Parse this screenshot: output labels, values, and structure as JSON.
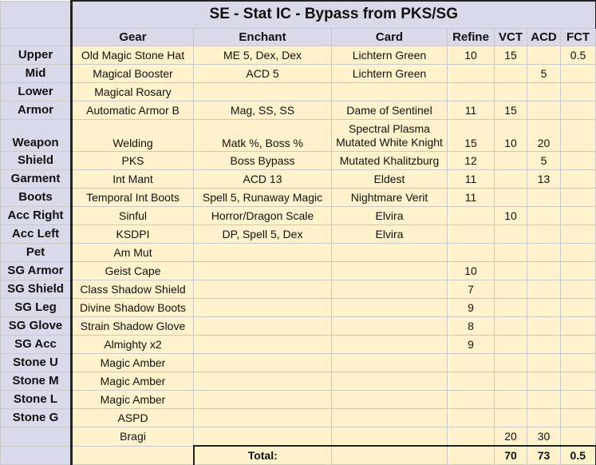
{
  "title": "SE - Stat IC - Bypass from PKS/SG",
  "headers": {
    "gear": "Gear",
    "enchant": "Enchant",
    "card": "Card",
    "refine": "Refine",
    "vct": "VCT",
    "acd": "ACD",
    "fct": "FCT"
  },
  "rows": [
    {
      "label": "Upper",
      "gear": "Old Magic Stone Hat",
      "enchant": "ME 5, Dex, Dex",
      "card": "Lichtern Green",
      "refine": "10",
      "vct": "15",
      "acd": "",
      "fct": "0.5"
    },
    {
      "label": "Mid",
      "gear": "Magical Booster",
      "enchant": "ACD 5",
      "card": "Lichtern Green",
      "refine": "",
      "vct": "",
      "acd": "5",
      "fct": ""
    },
    {
      "label": "Lower",
      "gear": "Magical Rosary",
      "enchant": "",
      "card": "",
      "refine": "",
      "vct": "",
      "acd": "",
      "fct": ""
    },
    {
      "label": "Armor",
      "gear": "Automatic Armor B",
      "enchant": "Mag, SS, SS",
      "card": "Dame of Sentinel",
      "refine": "11",
      "vct": "15",
      "acd": "",
      "fct": ""
    },
    {
      "label": "Weapon",
      "gear": "Welding",
      "enchant": "Matk %, Boss %",
      "card": "Spectral Plasma",
      "card2": "Mutated White Knight",
      "refine": "15",
      "vct": "10",
      "acd": "20",
      "fct": ""
    },
    {
      "label": "Shield",
      "gear": "PKS",
      "enchant": "Boss Bypass",
      "card": "Mutated Khalitzburg",
      "refine": "12",
      "vct": "",
      "acd": "5",
      "fct": ""
    },
    {
      "label": "Garment",
      "gear": "Int Mant",
      "enchant": "ACD 13",
      "card": "Eldest",
      "refine": "11",
      "vct": "",
      "acd": "13",
      "fct": ""
    },
    {
      "label": "Boots",
      "gear": "Temporal Int Boots",
      "enchant": "Spell 5, Runaway Magic",
      "card": "Nightmare Verit",
      "refine": "11",
      "vct": "",
      "acd": "",
      "fct": ""
    },
    {
      "label": "Acc Right",
      "gear": "Sinful",
      "enchant": "Horror/Dragon Scale",
      "card": "Elvira",
      "refine": "",
      "vct": "10",
      "acd": "",
      "fct": ""
    },
    {
      "label": "Acc Left",
      "gear": "KSDPI",
      "enchant": "DP, Spell 5, Dex",
      "card": "Elvira",
      "refine": "",
      "vct": "",
      "acd": "",
      "fct": ""
    },
    {
      "label": "Pet",
      "gear": "Am Mut",
      "enchant": "",
      "card": "",
      "refine": "",
      "vct": "",
      "acd": "",
      "fct": ""
    },
    {
      "label": "SG Armor",
      "gear": "Geist Cape",
      "enchant": "",
      "card": "",
      "refine": "10",
      "vct": "",
      "acd": "",
      "fct": ""
    },
    {
      "label": "SG Shield",
      "gear": "Class Shadow Shield",
      "enchant": "",
      "card": "",
      "refine": "7",
      "vct": "",
      "acd": "",
      "fct": ""
    },
    {
      "label": "SG Leg",
      "gear": "Divine Shadow Boots",
      "enchant": "",
      "card": "",
      "refine": "9",
      "vct": "",
      "acd": "",
      "fct": ""
    },
    {
      "label": "SG Glove",
      "gear": "Strain Shadow Glove",
      "enchant": "",
      "card": "",
      "refine": "8",
      "vct": "",
      "acd": "",
      "fct": ""
    },
    {
      "label": "SG Acc",
      "gear": "Almighty x2",
      "enchant": "",
      "card": "",
      "refine": "9",
      "vct": "",
      "acd": "",
      "fct": ""
    },
    {
      "label": "Stone U",
      "gear": "Magic Amber",
      "enchant": "",
      "card": "",
      "refine": "",
      "vct": "",
      "acd": "",
      "fct": ""
    },
    {
      "label": "Stone M",
      "gear": "Magic Amber",
      "enchant": "",
      "card": "",
      "refine": "",
      "vct": "",
      "acd": "",
      "fct": ""
    },
    {
      "label": "Stone L",
      "gear": "Magic Amber",
      "enchant": "",
      "card": "",
      "refine": "",
      "vct": "",
      "acd": "",
      "fct": ""
    },
    {
      "label": "Stone G",
      "gear": "ASPD",
      "enchant": "",
      "card": "",
      "refine": "",
      "vct": "",
      "acd": "",
      "fct": ""
    },
    {
      "label": "",
      "gear": "Bragi",
      "enchant": "",
      "card": "",
      "refine": "",
      "vct": "20",
      "acd": "30",
      "fct": ""
    }
  ],
  "total": {
    "label": "Total:",
    "vct": "70",
    "acd": "73",
    "fct": "0.5"
  }
}
